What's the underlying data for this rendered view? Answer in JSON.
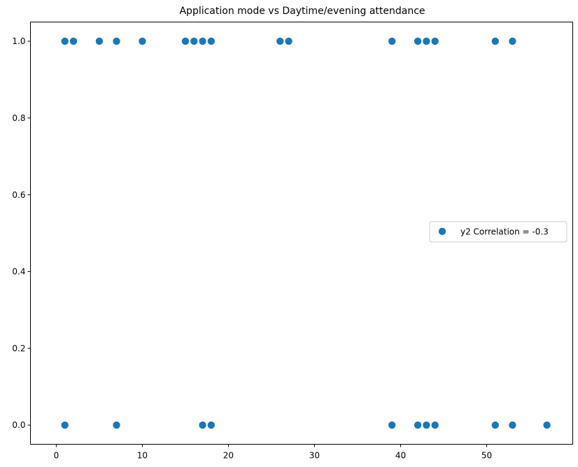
{
  "chart_data": {
    "type": "scatter",
    "title": "Application mode vs Daytime/evening attendance\t",
    "xlabel": "",
    "ylabel": "",
    "xlim": [
      -3,
      60
    ],
    "ylim": [
      -0.05,
      1.05
    ],
    "xticks": [
      0,
      10,
      20,
      30,
      40,
      50
    ],
    "yticks": [
      0.0,
      0.2,
      0.4,
      0.6,
      0.8,
      1.0
    ],
    "xtick_labels": [
      "0",
      "10",
      "20",
      "30",
      "40",
      "50"
    ],
    "ytick_labels": [
      "0.0",
      "0.2",
      "0.4",
      "0.6",
      "0.8",
      "1.0"
    ],
    "grid": false,
    "legend_position": "center-right",
    "marker_color": "#1f77b4",
    "series": [
      {
        "name": "y2 Correlation = -0.3",
        "points": [
          [
            1,
            1
          ],
          [
            2,
            1
          ],
          [
            5,
            1
          ],
          [
            7,
            1
          ],
          [
            10,
            1
          ],
          [
            15,
            1
          ],
          [
            16,
            1
          ],
          [
            17,
            1
          ],
          [
            18,
            1
          ],
          [
            26,
            1
          ],
          [
            27,
            1
          ],
          [
            39,
            1
          ],
          [
            42,
            1
          ],
          [
            43,
            1
          ],
          [
            44,
            1
          ],
          [
            51,
            1
          ],
          [
            53,
            1
          ],
          [
            1,
            0
          ],
          [
            7,
            0
          ],
          [
            17,
            0
          ],
          [
            18,
            0
          ],
          [
            39,
            0
          ],
          [
            42,
            0
          ],
          [
            43,
            0
          ],
          [
            44,
            0
          ],
          [
            51,
            0
          ],
          [
            53,
            0
          ],
          [
            57,
            0
          ]
        ]
      }
    ]
  }
}
